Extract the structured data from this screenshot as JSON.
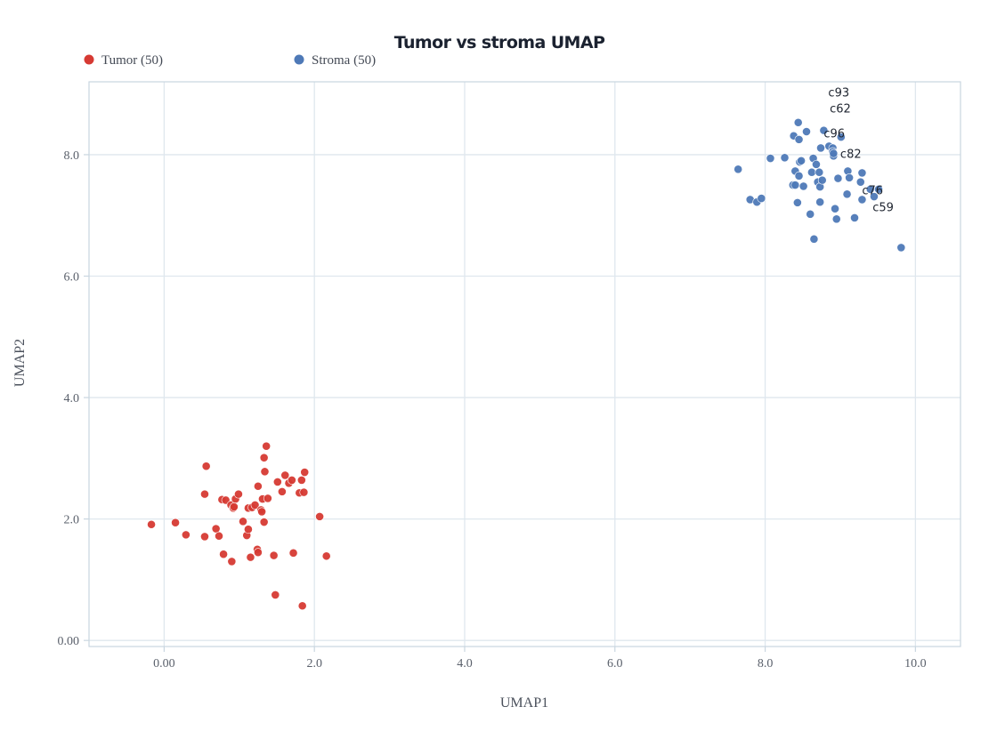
{
  "chart_data": {
    "type": "scatter",
    "title": "Tumor vs stroma UMAP",
    "xlabel": "UMAP1",
    "ylabel": "UMAP2",
    "xlim": [
      -1.0,
      10.6
    ],
    "ylim": [
      -0.1,
      9.2
    ],
    "xticks": [
      0,
      2,
      4,
      6,
      8,
      10
    ],
    "xtick_labels": [
      "0.00",
      "2.0",
      "4.0",
      "6.0",
      "8.0",
      "10.0"
    ],
    "yticks": [
      0,
      2,
      4,
      6,
      8
    ],
    "ytick_labels": [
      "0.00",
      "2.0",
      "4.0",
      "6.0",
      "8.0"
    ],
    "grid": true,
    "legend_position": "top-left",
    "series": [
      {
        "name": "Tumor (50)",
        "color": "#d63a33",
        "points": [
          [
            -0.17,
            1.91
          ],
          [
            0.15,
            1.94
          ],
          [
            0.29,
            1.74
          ],
          [
            0.54,
            1.71
          ],
          [
            0.54,
            2.41
          ],
          [
            0.56,
            2.87
          ],
          [
            0.69,
            1.84
          ],
          [
            0.73,
            1.72
          ],
          [
            0.77,
            2.32
          ],
          [
            0.79,
            1.42
          ],
          [
            0.82,
            2.31
          ],
          [
            0.89,
            2.23
          ],
          [
            0.9,
            1.3
          ],
          [
            0.92,
            2.18
          ],
          [
            0.95,
            2.33
          ],
          [
            0.99,
            2.41
          ],
          [
            1.05,
            1.96
          ],
          [
            1.1,
            1.73
          ],
          [
            1.12,
            1.83
          ],
          [
            1.12,
            2.18
          ],
          [
            1.15,
            1.37
          ],
          [
            1.17,
            2.19
          ],
          [
            1.21,
            2.23
          ],
          [
            1.24,
            1.5
          ],
          [
            1.25,
            2.54
          ],
          [
            1.25,
            1.45
          ],
          [
            1.29,
            2.15
          ],
          [
            1.3,
            2.12
          ],
          [
            1.31,
            2.33
          ],
          [
            1.33,
            1.95
          ],
          [
            1.33,
            3.01
          ],
          [
            1.34,
            2.78
          ],
          [
            1.36,
            3.2
          ],
          [
            1.38,
            2.34
          ],
          [
            1.46,
            1.4
          ],
          [
            1.48,
            0.75
          ],
          [
            1.51,
            2.61
          ],
          [
            1.57,
            2.45
          ],
          [
            1.61,
            2.72
          ],
          [
            1.66,
            2.59
          ],
          [
            1.7,
            2.64
          ],
          [
            1.72,
            1.44
          ],
          [
            1.8,
            2.43
          ],
          [
            1.83,
            2.64
          ],
          [
            1.84,
            0.57
          ],
          [
            1.86,
            2.44
          ],
          [
            1.87,
            2.77
          ],
          [
            2.07,
            2.04
          ],
          [
            2.16,
            1.39
          ],
          [
            0.93,
            2.2
          ]
        ]
      },
      {
        "name": "Stroma (50)",
        "color": "#4e79b7",
        "points": [
          [
            7.64,
            7.76
          ],
          [
            7.8,
            7.26
          ],
          [
            7.89,
            7.22
          ],
          [
            7.95,
            7.28
          ],
          [
            8.07,
            7.94
          ],
          [
            8.26,
            7.95
          ],
          [
            8.37,
            7.5
          ],
          [
            8.38,
            8.31
          ],
          [
            8.4,
            7.73
          ],
          [
            8.43,
            7.21
          ],
          [
            8.44,
            8.53
          ],
          [
            8.45,
            7.65
          ],
          [
            8.45,
            8.25
          ],
          [
            8.46,
            7.88
          ],
          [
            8.48,
            7.9
          ],
          [
            8.51,
            7.48
          ],
          [
            8.55,
            8.38
          ],
          [
            8.6,
            7.02
          ],
          [
            8.62,
            7.71
          ],
          [
            8.64,
            7.94
          ],
          [
            8.65,
            6.61
          ],
          [
            8.68,
            7.84
          ],
          [
            8.7,
            7.55
          ],
          [
            8.72,
            7.71
          ],
          [
            8.73,
            7.47
          ],
          [
            8.73,
            7.22
          ],
          [
            8.74,
            8.11
          ],
          [
            8.76,
            7.58
          ],
          [
            8.78,
            8.4
          ],
          [
            8.85,
            8.14
          ],
          [
            8.9,
            8.11
          ],
          [
            8.9,
            8.05
          ],
          [
            8.91,
            7.98
          ],
          [
            8.91,
            8.02
          ],
          [
            8.93,
            7.11
          ],
          [
            8.95,
            6.94
          ],
          [
            8.97,
            7.61
          ],
          [
            9.01,
            8.29
          ],
          [
            9.09,
            7.35
          ],
          [
            9.1,
            7.73
          ],
          [
            9.12,
            7.62
          ],
          [
            9.19,
            6.96
          ],
          [
            9.27,
            7.55
          ],
          [
            9.29,
            7.26
          ],
          [
            9.29,
            7.7
          ],
          [
            9.4,
            7.43
          ],
          [
            9.45,
            7.31
          ],
          [
            9.51,
            7.43
          ],
          [
            9.81,
            6.47
          ],
          [
            8.4,
            7.5
          ]
        ]
      }
    ],
    "annotations": [
      {
        "text": "c93",
        "x": 8.98,
        "y": 9.03
      },
      {
        "text": "c62",
        "x": 9.0,
        "y": 8.77
      },
      {
        "text": "c96",
        "x": 8.92,
        "y": 8.36
      },
      {
        "text": "c82",
        "x": 9.14,
        "y": 8.02
      },
      {
        "text": "c76",
        "x": 9.43,
        "y": 7.42
      },
      {
        "text": "c59",
        "x": 9.57,
        "y": 7.14
      }
    ]
  }
}
